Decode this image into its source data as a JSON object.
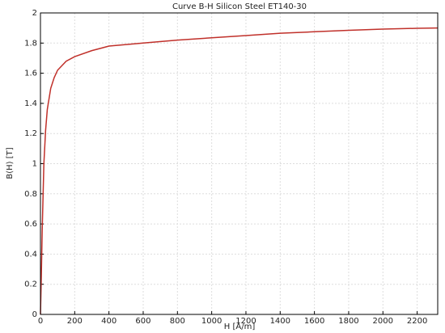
{
  "chart_data": {
    "type": "line",
    "title": "Curve B-H Silicon Steel ET140-30",
    "x_label": "H [A/m]",
    "y_label": "B(H) [T]",
    "x": [
      0,
      5,
      10,
      20,
      30,
      40,
      60,
      80,
      100,
      150,
      200,
      300,
      400,
      600,
      800,
      1000,
      1200,
      1400,
      1600,
      1800,
      2000,
      2200,
      2320
    ],
    "series": [
      {
        "name": "B(H)",
        "color": "#c0302a",
        "values": [
          0,
          0.25,
          0.55,
          1.0,
          1.22,
          1.36,
          1.5,
          1.57,
          1.62,
          1.68,
          1.71,
          1.75,
          1.78,
          1.8,
          1.82,
          1.835,
          1.85,
          1.865,
          1.875,
          1.885,
          1.893,
          1.898,
          1.9
        ]
      }
    ],
    "xlim": [
      0,
      2320
    ],
    "ylim": [
      0,
      2
    ],
    "xticks": [
      0,
      200,
      400,
      600,
      800,
      1000,
      1200,
      1400,
      1600,
      1800,
      2000,
      2200
    ],
    "yticks": [
      0,
      0.2,
      0.4,
      0.6,
      0.8,
      1,
      1.2,
      1.4,
      1.6,
      1.8,
      2
    ],
    "grid": true
  }
}
